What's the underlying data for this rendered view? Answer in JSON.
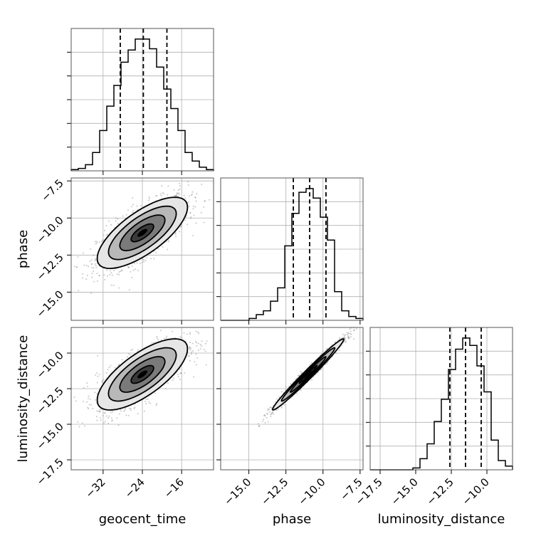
{
  "chart_data": {
    "type": "corner",
    "grid": true,
    "parameters": [
      "geocent_time",
      "phase",
      "luminosity_distance"
    ],
    "axis_labels": {
      "x": [
        "geocent_time",
        "phase",
        "luminosity_distance"
      ],
      "y": [
        "phase",
        "luminosity_distance"
      ]
    },
    "ranges": {
      "geocent_time": [
        -38.5,
        -9.5
      ],
      "phase": [
        -16.9,
        -7.3
      ],
      "luminosity_distance": [
        -18.2,
        -8.2
      ]
    },
    "ticks": {
      "geocent_time": [
        "−32",
        "−24",
        "−16"
      ],
      "phase": [
        "−15.0",
        "−12.5",
        "−10.0",
        "−7.5"
      ],
      "luminosity_distance": [
        "−17.5",
        "−15.0",
        "−12.5",
        "−10.0"
      ]
    },
    "tick_values": {
      "geocent_time": [
        -32,
        -24,
        -16
      ],
      "phase": [
        -15.0,
        -12.5,
        -10.0,
        -7.5
      ],
      "luminosity_distance": [
        -17.5,
        -15.0,
        -12.5,
        -10.0
      ]
    },
    "quantiles": {
      "geocent_time": [
        -28.5,
        -23.8,
        -19.0
      ],
      "phase": [
        -12.0,
        -10.9,
        -9.8
      ],
      "luminosity_distance": [
        -12.6,
        -11.5,
        -10.4
      ]
    },
    "histograms": {
      "geocent_time": {
        "edges": [
          -38.5,
          -37.05,
          -35.6,
          -34.15,
          -32.7,
          -31.25,
          -29.8,
          -28.35,
          -26.9,
          -25.45,
          -24.0,
          -22.55,
          -21.1,
          -19.65,
          -18.2,
          -16.75,
          -15.3,
          -13.85,
          -12.4,
          -10.95,
          -9.5
        ],
        "counts": [
          1,
          2,
          5,
          15,
          33,
          53,
          70,
          89,
          99,
          108,
          108,
          100,
          85,
          67,
          51,
          33,
          15,
          8,
          3,
          1
        ]
      },
      "phase": {
        "edges": [
          -16.9,
          -16.42,
          -15.94,
          -15.46,
          -14.98,
          -14.5,
          -14.02,
          -13.54,
          -13.06,
          -12.58,
          -12.1,
          -11.62,
          -11.14,
          -10.66,
          -10.18,
          -9.7,
          -9.22,
          -8.74,
          -8.26,
          -7.78,
          -7.3
        ],
        "counts": [
          0,
          0,
          0,
          0,
          1,
          3,
          5,
          10,
          17,
          39,
          56,
          67,
          69,
          64,
          54,
          42,
          15,
          5,
          2,
          1
        ]
      },
      "luminosity_distance": {
        "edges": [
          -18.2,
          -17.7,
          -17.2,
          -16.7,
          -16.2,
          -15.7,
          -15.2,
          -14.7,
          -14.2,
          -13.7,
          -13.2,
          -12.7,
          -12.2,
          -11.7,
          -11.2,
          -10.7,
          -10.2,
          -9.7,
          -9.2,
          -8.7,
          -8.2
        ],
        "counts": [
          0,
          0,
          0,
          0,
          0,
          0,
          1,
          6,
          14,
          26,
          38,
          54,
          65,
          71,
          67,
          56,
          42,
          16,
          5,
          2
        ]
      }
    },
    "pairs": [
      {
        "x": "geocent_time",
        "y": "phase",
        "center": [
          -24,
          -11.0
        ],
        "sd": [
          4.6,
          1.2
        ],
        "rho": 0.72
      },
      {
        "x": "geocent_time",
        "y": "luminosity_distance",
        "center": [
          -24,
          -11.5
        ],
        "sd": [
          4.6,
          1.25
        ],
        "rho": 0.72
      },
      {
        "x": "phase",
        "y": "luminosity_distance",
        "center": [
          -11.0,
          -11.5
        ],
        "sd": [
          1.2,
          1.25
        ],
        "rho": 0.985
      }
    ]
  }
}
